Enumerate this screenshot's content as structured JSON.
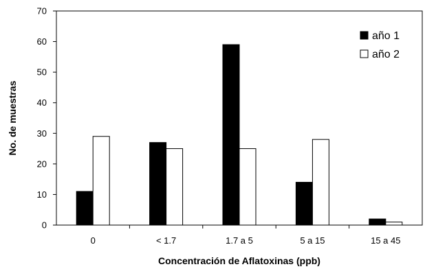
{
  "chart_data": {
    "type": "bar",
    "title": "",
    "xlabel": "Concentración de Aflatoxinas (ppb)",
    "ylabel": "No. de muestras",
    "categories": [
      "0",
      "< 1.7",
      "1.7 a 5",
      "5 a 15",
      "15 a 45"
    ],
    "series": [
      {
        "name": "año 1",
        "values": [
          11,
          27,
          59,
          14,
          2
        ],
        "color": "#000000"
      },
      {
        "name": "año 2",
        "values": [
          29,
          25,
          25,
          28,
          1
        ],
        "color": "#ffffff"
      }
    ],
    "ylim": [
      0,
      70
    ],
    "yticks": [
      0,
      10,
      20,
      30,
      40,
      50,
      60,
      70
    ],
    "grid": false,
    "legend": "top-right"
  }
}
